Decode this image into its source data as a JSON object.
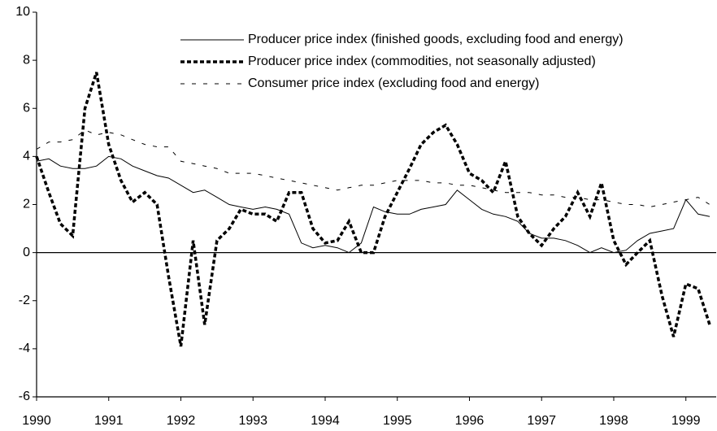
{
  "chart_data": {
    "type": "line",
    "x": [
      1990,
      1990.17,
      1990.33,
      1990.5,
      1990.67,
      1990.83,
      1991,
      1991.17,
      1991.33,
      1991.5,
      1991.67,
      1991.83,
      1992,
      1992.17,
      1992.33,
      1992.5,
      1992.67,
      1992.83,
      1993,
      1993.17,
      1993.33,
      1993.5,
      1993.67,
      1993.83,
      1994,
      1994.17,
      1994.33,
      1994.5,
      1994.67,
      1994.83,
      1995,
      1995.17,
      1995.33,
      1995.5,
      1995.67,
      1995.83,
      1996,
      1996.17,
      1996.33,
      1996.5,
      1996.67,
      1996.83,
      1997,
      1997.17,
      1997.33,
      1997.5,
      1997.67,
      1997.83,
      1998,
      1998.17,
      1998.33,
      1998.5,
      1998.67,
      1998.83,
      1999,
      1999.17,
      1999.33
    ],
    "series": [
      {
        "name": "Producer price index (finished goods, excluding food and energy)",
        "color": "#000000",
        "style": "solid",
        "values": [
          3.8,
          3.9,
          3.6,
          3.5,
          3.5,
          3.6,
          4.0,
          3.9,
          3.6,
          3.4,
          3.2,
          3.1,
          2.8,
          2.5,
          2.6,
          2.3,
          2.0,
          1.9,
          1.8,
          1.9,
          1.8,
          1.6,
          0.4,
          0.2,
          0.3,
          0.2,
          0.0,
          0.4,
          1.9,
          1.7,
          1.6,
          1.6,
          1.8,
          1.9,
          2.0,
          2.6,
          2.2,
          1.8,
          1.6,
          1.5,
          1.3,
          0.8,
          0.6,
          0.6,
          0.5,
          0.3,
          0.0,
          0.2,
          0.0,
          0.1,
          0.5,
          0.8,
          0.9,
          1.0,
          2.2,
          1.6,
          1.5
        ]
      },
      {
        "name": "Producer price index (commodities, not seasonally adjusted)",
        "color": "#000000",
        "style": "dotted",
        "values": [
          4.0,
          2.5,
          1.2,
          0.7,
          6.0,
          7.5,
          4.5,
          3.0,
          2.1,
          2.5,
          2.0,
          -1.0,
          -3.9,
          0.5,
          -3.0,
          0.5,
          1.0,
          1.8,
          1.6,
          1.6,
          1.3,
          2.5,
          2.5,
          1.0,
          0.4,
          0.5,
          1.3,
          0.0,
          0.0,
          1.5,
          2.5,
          3.5,
          4.5,
          5.0,
          5.3,
          4.5,
          3.3,
          3.0,
          2.5,
          3.8,
          1.5,
          0.8,
          0.3,
          1.0,
          1.5,
          2.5,
          1.5,
          2.9,
          0.5,
          -0.5,
          0.0,
          0.5,
          -1.8,
          -3.5,
          -1.3,
          -1.5,
          -3.0
        ]
      },
      {
        "name": "Consumer price index (excluding food and energy)",
        "color": "#000000",
        "style": "dashed",
        "values": [
          4.3,
          4.6,
          4.6,
          4.7,
          5.1,
          4.9,
          5.0,
          4.9,
          4.7,
          4.5,
          4.4,
          4.4,
          3.8,
          3.7,
          3.6,
          3.5,
          3.3,
          3.3,
          3.3,
          3.2,
          3.1,
          3.0,
          2.9,
          2.8,
          2.7,
          2.6,
          2.7,
          2.8,
          2.8,
          2.9,
          3.0,
          3.0,
          3.0,
          2.9,
          2.9,
          2.8,
          2.8,
          2.7,
          2.6,
          2.5,
          2.5,
          2.5,
          2.4,
          2.4,
          2.3,
          2.3,
          2.2,
          2.2,
          2.1,
          2.0,
          2.0,
          1.9,
          2.0,
          2.1,
          2.2,
          2.3,
          2.0
        ]
      }
    ],
    "xlim": [
      1990,
      1999.42
    ],
    "xticks": [
      1990,
      1991,
      1992,
      1993,
      1994,
      1995,
      1996,
      1997,
      1998,
      1999
    ],
    "ylim": [
      -6,
      10
    ],
    "yticks": [
      -6,
      -4,
      -2,
      0,
      2,
      4,
      6,
      8,
      10
    ],
    "grid": false,
    "legend": "top"
  }
}
